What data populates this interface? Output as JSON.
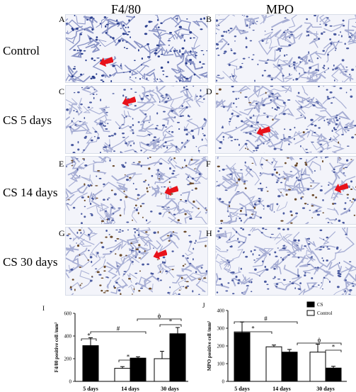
{
  "figure": {
    "col_titles": [
      "F4/80",
      "MPO"
    ],
    "row_labels": [
      "Control",
      "CS 5 days",
      "CS 14 days",
      "CS 30 days"
    ],
    "panel_letters": [
      "A",
      "B",
      "C",
      "D",
      "E",
      "F",
      "G",
      "H"
    ],
    "arrow_color": "#e8121a",
    "arrow_panels": [
      "A",
      "C",
      "D",
      "E",
      "F",
      "G"
    ]
  },
  "chart_data": [
    {
      "panel": "I",
      "type": "bar",
      "ylabel": "F4/80 positive cell /mm²",
      "ylim": [
        0,
        600
      ],
      "yticks": [
        0,
        200,
        400,
        600
      ],
      "categories": [
        "5 days",
        "14 days",
        "30 days"
      ],
      "series": [
        {
          "name": "CS",
          "color": "#000000",
          "values": [
            315,
            205,
            420
          ],
          "errors": [
            70,
            12,
            55
          ]
        },
        {
          "name": "Control",
          "color": "#ffffff",
          "values": [
            null,
            115,
            200
          ],
          "errors": [
            null,
            15,
            65
          ]
        }
      ],
      "significance": [
        {
          "symbol": "*",
          "between": "5 days: Control vs CS"
        },
        {
          "symbol": "#",
          "between": "5 days CS vs 14 days CS"
        },
        {
          "symbol": "*",
          "between": "14 days: Control vs CS"
        },
        {
          "symbol": "ϕ",
          "between": "14 days CS vs 30 days CS"
        },
        {
          "symbol": "*",
          "between": "30 days: Control vs CS"
        }
      ]
    },
    {
      "panel": "J",
      "type": "bar",
      "ylabel": "MPO positive cell /mm²",
      "ylim": [
        0,
        400
      ],
      "yticks": [
        0,
        100,
        200,
        300,
        400
      ],
      "categories": [
        "5 days",
        "14 days",
        "30 days"
      ],
      "series": [
        {
          "name": "CS",
          "color": "#000000",
          "values": [
            275,
            165,
            75
          ],
          "errors": [
            60,
            15,
            10
          ]
        },
        {
          "name": "Control",
          "color": "#ffffff",
          "values": [
            null,
            195,
            165
          ],
          "errors": [
            null,
            10,
            45
          ]
        }
      ],
      "legend": {
        "items": [
          "CS",
          "Control"
        ],
        "position": "top-right"
      },
      "significance": [
        {
          "symbol": "*",
          "between": "5 days CS vs 14 days Control"
        },
        {
          "symbol": "#",
          "between": "5 days CS vs 14 days CS"
        },
        {
          "symbol": "ϕ",
          "between": "14 days CS vs 30 days CS"
        },
        {
          "symbol": "*",
          "between": "30 days: Control vs CS"
        }
      ]
    }
  ]
}
